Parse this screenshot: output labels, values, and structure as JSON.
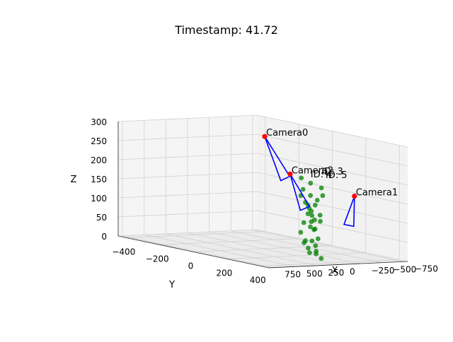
{
  "chart_data": {
    "type": "scatter3d",
    "title": "Timestamp: 41.72",
    "xlabel": "X",
    "ylabel": "Y",
    "zlabel": "Z",
    "xlim": [
      -800,
      800
    ],
    "ylim": [
      -450,
      450
    ],
    "zlim": [
      0,
      300
    ],
    "x_ticks": [
      "−750",
      "−500",
      "−250",
      "0",
      "250",
      "500",
      "750"
    ],
    "y_ticks": [
      "−400",
      "−200",
      "0",
      "200",
      "400"
    ],
    "z_ticks": [
      "0",
      "50",
      "100",
      "150",
      "200",
      "250",
      "300"
    ],
    "grid": true,
    "cameras": [
      {
        "name": "Camera0",
        "position": [
          -600,
          -300,
          260
        ],
        "direction": [
          150,
          200,
          -90
        ]
      },
      {
        "name": "Camera2",
        "position": [
          -700,
          -200,
          170
        ],
        "direction": [
          120,
          150,
          -75
        ]
      },
      {
        "name": "Camera1",
        "position": [
          200,
          650,
          200
        ],
        "direction": [
          -90,
          -80,
          -85
        ]
      }
    ],
    "camera_color": "#ff0000",
    "frustum_color": "#0000ff",
    "point_color": "#008000",
    "track_labels": [
      "ID: 3",
      "ID: 4",
      "ID: 5"
    ]
  }
}
